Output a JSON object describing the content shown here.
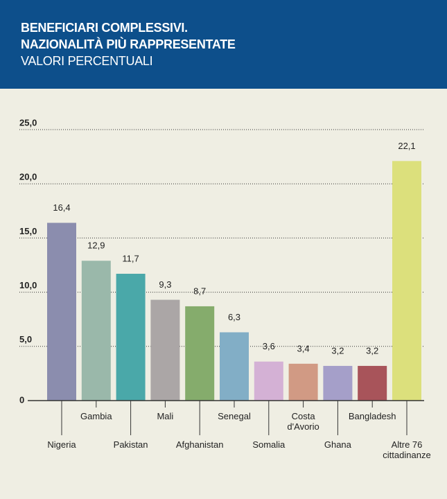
{
  "chart_data": {
    "type": "bar",
    "title": "BENEFICIARI COMPLESSIVI.\nNAZIONALITÀ PIÙ RAPPRESENTATE",
    "subtitle": "VALORI PERCENTUALI",
    "categories": [
      "Nigeria",
      "Gambia",
      "Pakistan",
      "Mali",
      "Afghanistan",
      "Senegal",
      "Somalia",
      "Costa\nd'Avorio",
      "Ghana",
      "Bangladesh",
      "Altre 76\ncittadinanze"
    ],
    "values": [
      16.4,
      12.9,
      11.7,
      9.3,
      8.7,
      6.3,
      3.6,
      3.4,
      3.2,
      3.2,
      22.1
    ],
    "value_labels": [
      "16,4",
      "12,9",
      "11,7",
      "9,3",
      "8,7",
      "6,3",
      "3,6",
      "3,4",
      "3,2",
      "3,2",
      "22,1"
    ],
    "colors": [
      "#8b8dae",
      "#9ab8aa",
      "#4aa8a9",
      "#aba6a6",
      "#85ac6c",
      "#82aec6",
      "#d4b1d5",
      "#d19a84",
      "#a59fc9",
      "#a8545a",
      "#dce07c"
    ],
    "ylim": [
      0,
      25
    ],
    "yticks": [
      0,
      {
        "value": 5,
        "label": "5,0"
      },
      {
        "value": 10,
        "label": "10,0"
      },
      {
        "value": 15,
        "label": "15,0"
      },
      {
        "value": 20,
        "label": "20,0"
      },
      {
        "value": 25,
        "label": "25,0"
      }
    ],
    "grid": true
  }
}
